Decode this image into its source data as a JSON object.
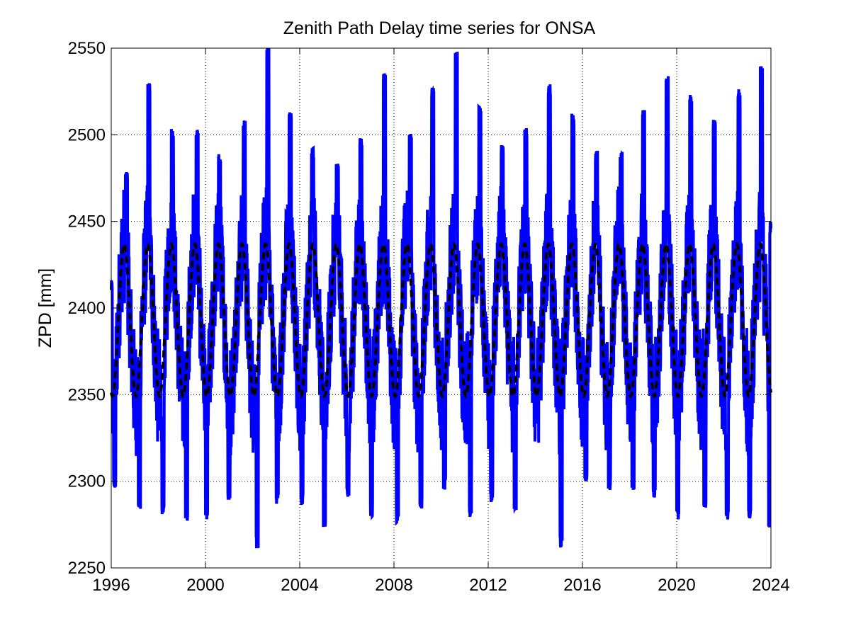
{
  "chart_data": {
    "type": "line",
    "title": "Zenith Path Delay time series for ONSA",
    "xlabel": "",
    "ylabel": "ZPD [mm]",
    "xlim": [
      1996,
      2024
    ],
    "ylim": [
      2250,
      2550
    ],
    "x_ticks": [
      1996,
      2000,
      2004,
      2008,
      2012,
      2016,
      2020,
      2024
    ],
    "x_tick_labels": [
      "1996",
      "2000",
      "2004",
      "2008",
      "2012",
      "2016",
      "2020",
      "2024"
    ],
    "y_ticks": [
      2250,
      2300,
      2350,
      2400,
      2450,
      2500,
      2550
    ],
    "y_tick_labels": [
      "2250",
      "2300",
      "2350",
      "2400",
      "2450",
      "2500",
      "2550"
    ],
    "grid": true,
    "grid_style": "dotted",
    "series": [
      {
        "style": "solid",
        "color": "#0000ff",
        "description_values": {
          "peaks": [
            {
              "x": 1996.65,
              "y": 2475
            },
            {
              "x": 1997.6,
              "y": 2526
            },
            {
              "x": 1998.6,
              "y": 2500
            },
            {
              "x": 1999.65,
              "y": 2500
            },
            {
              "x": 2000.6,
              "y": 2485
            },
            {
              "x": 2001.65,
              "y": 2505
            },
            {
              "x": 2002.65,
              "y": 2549
            },
            {
              "x": 2003.6,
              "y": 2510
            },
            {
              "x": 2004.55,
              "y": 2490
            },
            {
              "x": 2005.6,
              "y": 2480
            },
            {
              "x": 2006.6,
              "y": 2495
            },
            {
              "x": 2007.6,
              "y": 2532
            },
            {
              "x": 2008.7,
              "y": 2498
            },
            {
              "x": 2009.65,
              "y": 2524
            },
            {
              "x": 2010.65,
              "y": 2544
            },
            {
              "x": 2011.65,
              "y": 2514
            },
            {
              "x": 2012.6,
              "y": 2490
            },
            {
              "x": 2013.6,
              "y": 2500
            },
            {
              "x": 2014.6,
              "y": 2526
            },
            {
              "x": 2015.6,
              "y": 2509
            },
            {
              "x": 2016.6,
              "y": 2487
            },
            {
              "x": 2017.65,
              "y": 2487
            },
            {
              "x": 2018.6,
              "y": 2511
            },
            {
              "x": 2019.6,
              "y": 2530
            },
            {
              "x": 2020.6,
              "y": 2520
            },
            {
              "x": 2021.6,
              "y": 2505
            },
            {
              "x": 2022.65,
              "y": 2524
            },
            {
              "x": 2023.6,
              "y": 2537
            }
          ],
          "troughs": [
            {
              "x": 1996.15,
              "y": 2299
            },
            {
              "x": 1997.2,
              "y": 2287
            },
            {
              "x": 1998.2,
              "y": 2285
            },
            {
              "x": 1999.2,
              "y": 2281
            },
            {
              "x": 2000.05,
              "y": 2282
            },
            {
              "x": 2001.0,
              "y": 2292
            },
            {
              "x": 2002.2,
              "y": 2265
            },
            {
              "x": 2003.05,
              "y": 2291
            },
            {
              "x": 2004.1,
              "y": 2290
            },
            {
              "x": 2005.05,
              "y": 2277
            },
            {
              "x": 2006.05,
              "y": 2293
            },
            {
              "x": 2007.05,
              "y": 2283
            },
            {
              "x": 2008.15,
              "y": 2280
            },
            {
              "x": 2009.15,
              "y": 2287
            },
            {
              "x": 2010.15,
              "y": 2299
            },
            {
              "x": 2011.25,
              "y": 2283
            },
            {
              "x": 2012.15,
              "y": 2292
            },
            {
              "x": 2013.15,
              "y": 2287
            },
            {
              "x": 2015.1,
              "y": 2265
            },
            {
              "x": 2016.15,
              "y": 2301
            },
            {
              "x": 2017.15,
              "y": 2298
            },
            {
              "x": 2018.15,
              "y": 2299
            },
            {
              "x": 2019.05,
              "y": 2294
            },
            {
              "x": 2020.05,
              "y": 2282
            },
            {
              "x": 2021.2,
              "y": 2287
            },
            {
              "x": 2022.15,
              "y": 2282
            },
            {
              "x": 2023.1,
              "y": 2281
            },
            {
              "x": 2023.95,
              "y": 2275
            }
          ],
          "end_value": {
            "x": 2024.0,
            "y": 2446
          },
          "start_value": {
            "x": 1996.0,
            "y": 2412
          }
        }
      },
      {
        "style": "dashed",
        "color": "#000000",
        "model": "seasonal",
        "mean": 2393,
        "amplitude": 44,
        "period_years": 1,
        "peak_phase": 0.55,
        "min": 2349,
        "max": 2437
      }
    ]
  }
}
